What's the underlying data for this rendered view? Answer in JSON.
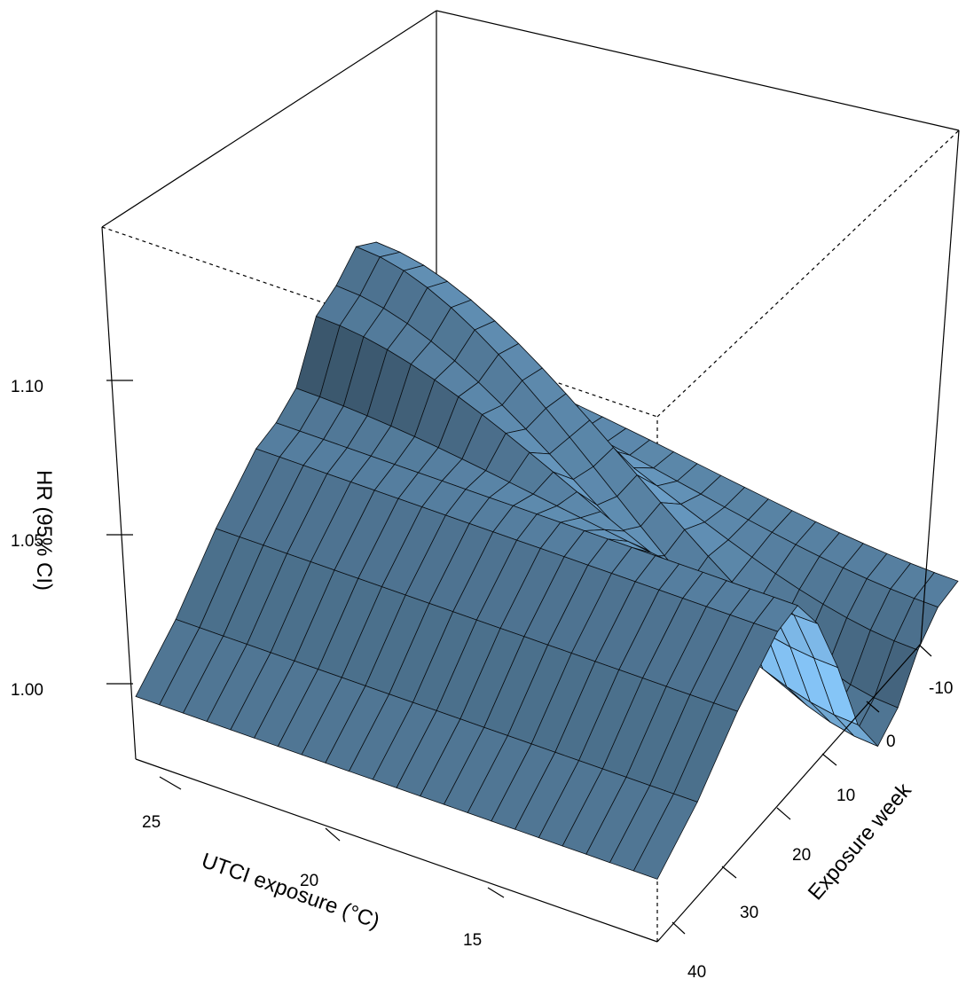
{
  "chart_data": {
    "type": "surface3d",
    "xlabel": "UTCI exposure (°C)",
    "ylabel": "Exposure week",
    "zlabel": "HR (95% CI)",
    "xticks": [
      "25",
      "20",
      "15"
    ],
    "yticks": [
      "-10",
      "0",
      "10",
      "20",
      "30",
      "40"
    ],
    "zticks": [
      "1.00",
      "1.05",
      "1.10"
    ],
    "xlim": [
      12,
      27
    ],
    "ylim": [
      -15,
      40
    ],
    "zlim": [
      0.98,
      1.15
    ],
    "grid": false,
    "surface_color": "#5c88ab",
    "edge_color": "#0a0f14",
    "temperature_profile": {
      "utci": [
        27,
        25,
        23,
        21,
        20,
        19,
        18,
        17,
        16,
        15,
        14,
        13,
        12
      ],
      "hr_week_minus15": [
        1.0,
        1.015,
        1.035,
        1.052,
        1.056,
        1.063,
        1.083,
        1.089,
        1.098,
        1.095,
        1.062,
        1.045,
        1.043
      ],
      "hr_week_40": [
        1.0,
        1.015,
        1.035,
        1.052,
        1.056,
        1.045,
        1.025,
        1.0,
        0.987,
        0.995,
        1.01,
        1.02,
        1.024
      ]
    }
  }
}
